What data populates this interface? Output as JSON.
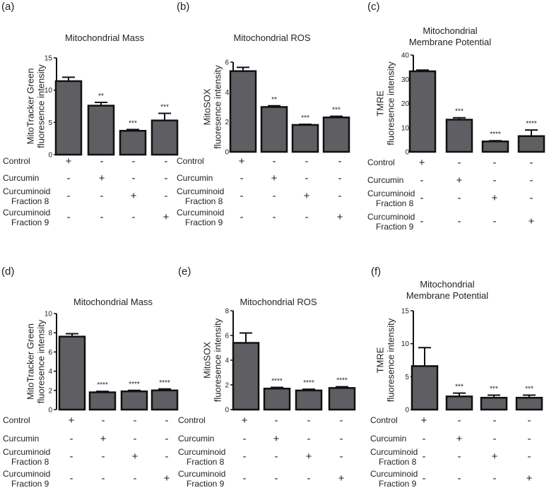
{
  "chart_data": [
    {
      "panel": "(a)",
      "type": "bar",
      "title": [
        "Mitochondrial Mass"
      ],
      "ylabel": [
        "MitoTracker Green",
        "fluoresence intensity"
      ],
      "ylim": [
        0,
        15
      ],
      "yticks": [
        0,
        5,
        10,
        15
      ],
      "categories": [
        "Control",
        "Curcumin",
        "Curcuminoid Fraction 8",
        "Curcuminoid Fraction 9"
      ],
      "values": [
        11.4,
        7.6,
        3.7,
        5.3
      ],
      "errors": [
        0.6,
        0.5,
        0.2,
        1.1
      ],
      "significance": [
        "",
        "**",
        "***",
        "***"
      ]
    },
    {
      "panel": "(b)",
      "type": "bar",
      "title": [
        "Mitochondrial ROS"
      ],
      "ylabel": [
        "MitoSOX",
        "fluoresence intensity"
      ],
      "ylim": [
        0,
        6
      ],
      "yticks": [
        0,
        2,
        4,
        6
      ],
      "categories": [
        "Control",
        "Curcumin",
        "Curcuminoid Fraction 8",
        "Curcuminoid Fraction 9"
      ],
      "values": [
        5.4,
        3.0,
        1.8,
        2.3
      ],
      "errors": [
        0.25,
        0.08,
        0.04,
        0.08
      ],
      "significance": [
        "",
        "**",
        "***",
        "***"
      ]
    },
    {
      "panel": "(c)",
      "type": "bar",
      "title": [
        "Mitochondrial",
        "Membrane Potential"
      ],
      "ylabel": [
        "TMRE",
        "fluoresence intensity"
      ],
      "ylim": [
        0,
        40
      ],
      "yticks": [
        0,
        10,
        20,
        30,
        40
      ],
      "categories": [
        "Control",
        "Curcumin",
        "Curcuminoid Fraction 8",
        "Curcuminoid Fraction 9"
      ],
      "values": [
        33.3,
        13.3,
        4.3,
        6.5
      ],
      "errors": [
        0.5,
        0.8,
        0.3,
        2.5
      ],
      "significance": [
        "",
        "***",
        "****",
        "****"
      ]
    },
    {
      "panel": "(d)",
      "type": "bar",
      "title": [
        "Mitochondrial Mass"
      ],
      "ylabel": [
        "MitoTracker Green",
        "fluoresence intensity"
      ],
      "ylim": [
        0,
        10
      ],
      "yticks": [
        0,
        2,
        4,
        6,
        8,
        10
      ],
      "categories": [
        "Control",
        "Curcumin",
        "Curcuminoid Fraction 8",
        "Curcuminoid Fraction 9"
      ],
      "values": [
        7.6,
        1.8,
        1.9,
        2.0
      ],
      "errors": [
        0.3,
        0.1,
        0.1,
        0.15
      ],
      "significance": [
        "",
        "****",
        "****",
        "****"
      ]
    },
    {
      "panel": "(e)",
      "type": "bar",
      "title": [
        "Mitochondrial ROS"
      ],
      "ylabel": [
        "MitoSOX",
        "fluoresence intensity"
      ],
      "ylim": [
        0,
        8
      ],
      "yticks": [
        0,
        2,
        4,
        6,
        8
      ],
      "categories": [
        "Control",
        "Curcumin",
        "Curcuminoid Fraction 8",
        "Curcuminoid Fraction 9"
      ],
      "values": [
        5.4,
        1.7,
        1.55,
        1.75
      ],
      "errors": [
        0.8,
        0.1,
        0.1,
        0.1
      ],
      "significance": [
        "",
        "****",
        "****",
        "****"
      ]
    },
    {
      "panel": "(f)",
      "type": "bar",
      "title": [
        "Mitochondrial",
        "Membrane Potential"
      ],
      "ylabel": [
        "TMRE",
        "fluoresence intensity"
      ],
      "ylim": [
        0,
        15
      ],
      "yticks": [
        0,
        5,
        10,
        15
      ],
      "categories": [
        "Control",
        "Curcumin",
        "Curcuminoid Fraction 8",
        "Curcuminoid Fraction 9"
      ],
      "values": [
        6.6,
        2.0,
        1.8,
        1.8
      ],
      "errors": [
        2.8,
        0.5,
        0.4,
        0.4
      ],
      "significance": [
        "",
        "***",
        "***",
        "***"
      ]
    }
  ],
  "condition_table": {
    "rows": [
      {
        "label": [
          "Control"
        ],
        "signs": [
          "+",
          "-",
          "-",
          "-"
        ]
      },
      {
        "label": [
          "Curcumin"
        ],
        "signs": [
          "-",
          "+",
          "-",
          "-"
        ]
      },
      {
        "label": [
          "Curcuminoid",
          "Fraction 8"
        ],
        "signs": [
          "-",
          "-",
          "+",
          "-"
        ]
      },
      {
        "label": [
          "Curcuminoid",
          "Fraction 9"
        ],
        "signs": [
          "-",
          "-",
          "-",
          "+"
        ]
      }
    ]
  },
  "colors": {
    "bar_fill": "#5f5f63",
    "axis": "#111111",
    "text": "#222222"
  }
}
